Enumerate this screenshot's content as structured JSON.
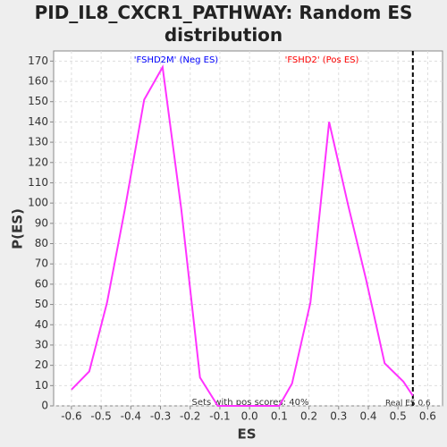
{
  "chart_data": {
    "type": "line",
    "title": "PID_IL8_CXCR1_PATHWAY: Random ES distribution",
    "x_label": "ES",
    "y_label": "P(ES)",
    "annotations": [
      "'FSHD2M' (Neg ES)",
      "'FSHD2' (Pos ES)",
      "Sets with pos scores: 40%"
    ],
    "annotation_colors": [
      "#0000ff",
      "#ff0000",
      "#333333"
    ],
    "real_es": 0.55,
    "real_es_label": "Real ES 0.6",
    "x": [
      -0.6,
      -0.54,
      -0.48,
      -0.42,
      -0.355,
      -0.293,
      -0.23,
      -0.167,
      -0.107,
      0.1,
      0.143,
      0.205,
      0.268,
      0.332,
      0.393,
      0.455,
      0.518,
      0.55
    ],
    "series": [
      {
        "name": "P(ES)",
        "color": "#ff33ff",
        "values": [
          8,
          17,
          51,
          97,
          151,
          167,
          97,
          14,
          0,
          0,
          11,
          51,
          140,
          99,
          62,
          21,
          12,
          5
        ]
      }
    ],
    "xlim": [
      -0.66,
      0.65
    ],
    "ylim": [
      0,
      175
    ],
    "xticks": [
      -0.6,
      -0.5,
      -0.4,
      -0.3,
      -0.2,
      -0.1,
      {
        "value": 0,
        "label": "0.0"
      },
      0.1,
      0.2,
      0.3,
      0.4,
      0.5,
      0.6
    ],
    "yticks": [
      0,
      10,
      20,
      30,
      40,
      50,
      60,
      70,
      80,
      90,
      100,
      110,
      120,
      130,
      140,
      150,
      160,
      170
    ],
    "grid": true
  }
}
